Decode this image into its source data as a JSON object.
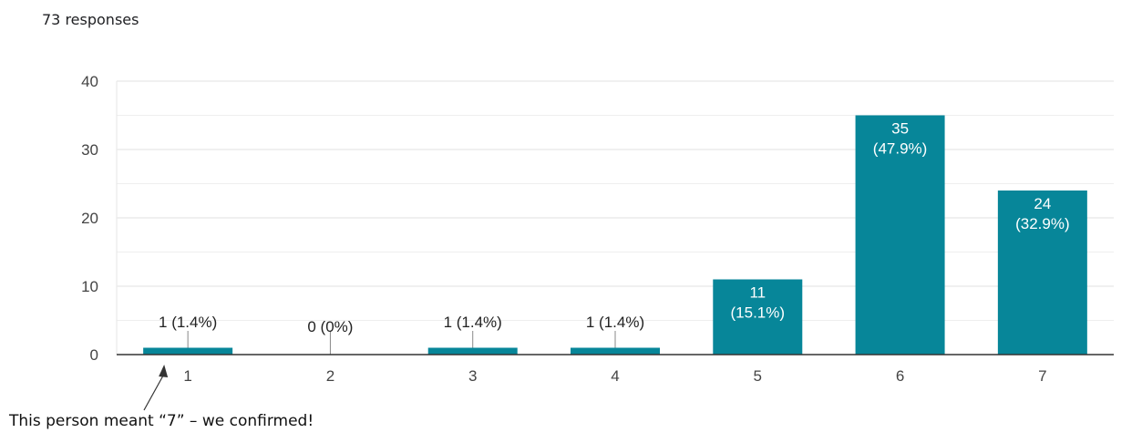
{
  "responses_label": "73 responses",
  "annotation": "This person meant “7” – we confirmed!",
  "colors": {
    "bar": "#078699",
    "grid": "#e8e8e8",
    "axis": "#333333"
  },
  "chart_data": {
    "type": "bar",
    "categories": [
      "1",
      "2",
      "3",
      "4",
      "5",
      "6",
      "7"
    ],
    "values": [
      1,
      0,
      1,
      1,
      11,
      35,
      24
    ],
    "percents": [
      "1.4%",
      "0%",
      "1.4%",
      "1.4%",
      "15.1%",
      "47.9%",
      "32.9%"
    ],
    "ylim": [
      0,
      40
    ],
    "yticks": [
      0,
      10,
      20,
      30,
      40
    ],
    "grid": true,
    "title": "",
    "xlabel": "",
    "ylabel": ""
  }
}
